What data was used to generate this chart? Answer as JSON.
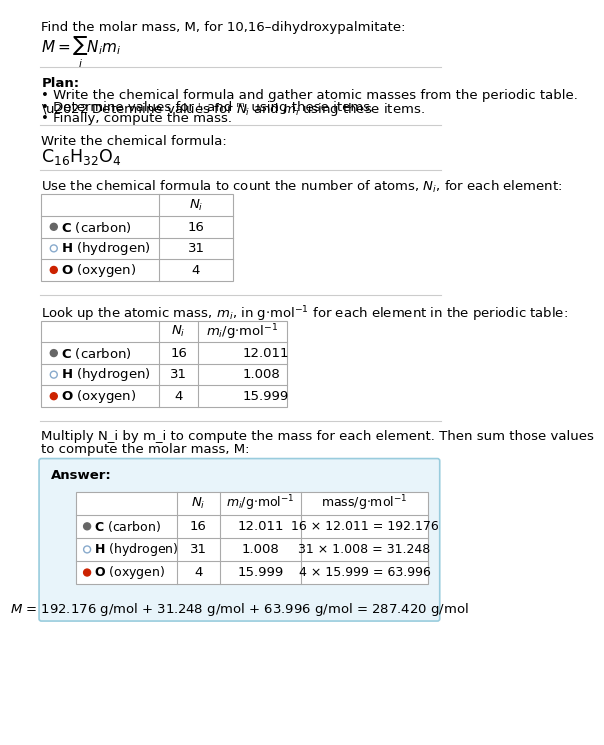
{
  "title_line": "Find the molar mass, M, for 10,16–dihydroxypalmitate:",
  "plan_header": "Plan:",
  "plan_bullets": [
    "Write the chemical formula and gather atomic masses from the periodic table.",
    "Determine values for N_i and m_i using these items.",
    "Finally, compute the mass."
  ],
  "formula_header": "Write the chemical formula:",
  "table1_header": "Use the chemical formula to count the number of atoms, N_i, for each element:",
  "table2_header": "Look up the atomic mass, m_i, in g·mol⁻¹ for each element in the periodic table:",
  "final_header_1": "Multiply N_i by m_i to compute the mass for each element. Then sum those values",
  "final_header_2": "to compute the molar mass, M:",
  "elements": [
    "C (carbon)",
    "H (hydrogen)",
    "O (oxygen)"
  ],
  "element_symbols": [
    "C",
    "H",
    "O"
  ],
  "dot_colors": [
    "#666666",
    "none",
    "#cc2200"
  ],
  "dot_edge_colors": [
    "#666666",
    "#88aacc",
    "#cc2200"
  ],
  "Ni": [
    16,
    31,
    4
  ],
  "mi": [
    "12.011",
    "1.008",
    "15.999"
  ],
  "mass_exprs": [
    "16 × 12.011 = 192.176",
    "31 × 1.008 = 31.248",
    "4 × 15.999 = 63.996"
  ],
  "final_eq": "M = 192.176 g/mol + 31.248 g/mol + 63.996 g/mol = 287.420 g/mol",
  "answer_box_color": "#e8f4fa",
  "answer_box_edge": "#99ccdd",
  "bg_color": "#ffffff",
  "text_color": "#000000",
  "font_size": 9.5
}
